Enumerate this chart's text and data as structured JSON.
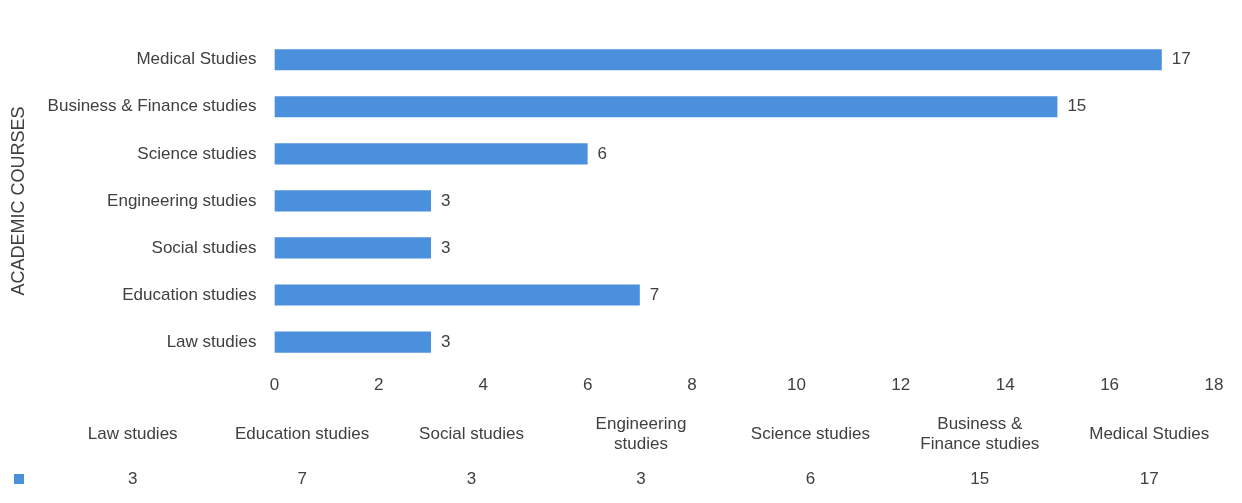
{
  "chart_data": [
    {
      "type": "bar",
      "orientation": "horizontal",
      "ylabel": "ACADEMIC COURSES",
      "categories": [
        "Medical Studies",
        "Business & Finance studies",
        "Science studies",
        "Engineering studies",
        "Social studies",
        "Education studies",
        "Law studies"
      ],
      "values": [
        17,
        15,
        6,
        3,
        3,
        7,
        3
      ],
      "color": "#4a90dc",
      "xlim": [
        0,
        18
      ],
      "xticks": [
        0,
        2,
        4,
        6,
        8,
        10,
        12,
        14,
        16,
        18
      ],
      "grid": false,
      "legend": false,
      "data_labels": true
    },
    {
      "type": "other",
      "categories": [
        "Law studies",
        "Education studies",
        "Social studies",
        "Engineering studies",
        "Science studies",
        "Business & Finance studies",
        "Medical Studies"
      ],
      "values": [
        3,
        7,
        3,
        3,
        6,
        15,
        17
      ],
      "data_labels": true,
      "color": "#4a90dc"
    }
  ]
}
